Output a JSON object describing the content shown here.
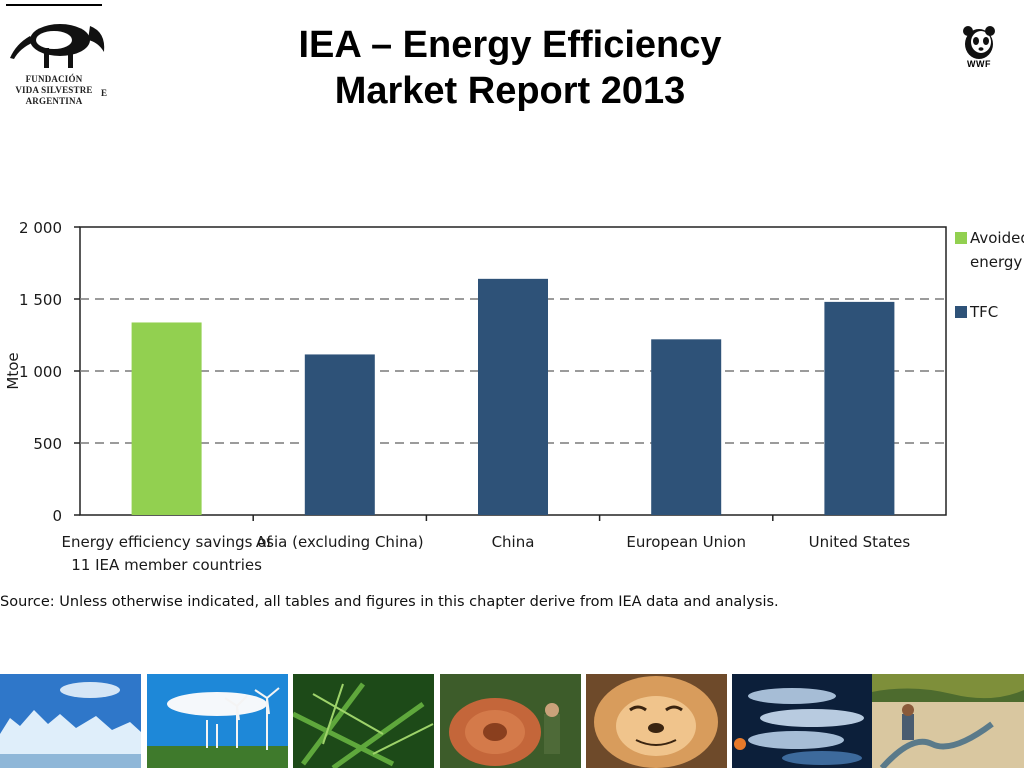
{
  "header": {
    "title_line1": "IEA – Energy Efficiency",
    "title_line2": "Market Report 2013",
    "left_logo": {
      "icon": "anteater-icon",
      "org_line1": "FUNDACIÓN",
      "org_line2": "VIDA SILVESTRE",
      "org_line3": "ARGENTINA",
      "edge_letter": "E"
    },
    "right_logo": {
      "icon": "panda-icon",
      "text": "WWF"
    }
  },
  "chart_data": {
    "type": "bar",
    "categories": [
      "Energy efficiency savings of 11 IEA member countries",
      "Asia (excluding China)",
      "China",
      "European Union",
      "United States"
    ],
    "category_lines": [
      [
        "Energy efficiency savings of",
        "11 IEA member countries"
      ],
      [
        "Asia (excluding China)"
      ],
      [
        "China"
      ],
      [
        "European Union"
      ],
      [
        "United States"
      ]
    ],
    "series": [
      {
        "name": "Avoided energy",
        "legend_lines": [
          "Avoided",
          "energy"
        ],
        "color": "#92d050",
        "values": [
          1337,
          null,
          null,
          null,
          null
        ]
      },
      {
        "name": "TFC",
        "legend_lines": [
          "TFC"
        ],
        "color": "#2e5278",
        "values": [
          null,
          1115,
          1640,
          1220,
          1480
        ]
      }
    ],
    "ylabel": "Mtoe",
    "xlabel": "",
    "title": "",
    "ylim": [
      0,
      2000
    ],
    "yticks": [
      0,
      500,
      1000,
      1500,
      2000
    ],
    "ytick_labels": [
      "0",
      "500",
      "1 000",
      "1 500",
      "2 000"
    ],
    "grid": "dashed horizontal",
    "legend_position": "right"
  },
  "source_note": "Source: Unless otherwise indicated, all tables and figures in this chapter derive from IEA data and analysis.",
  "photos": [
    {
      "icon": "glacier-photo",
      "colors": [
        "#2f77c9",
        "#dfeefa",
        "#8fb7d8"
      ]
    },
    {
      "icon": "wind-turbines-photo",
      "colors": [
        "#1e88d8",
        "#f5f8fb",
        "#3f7a2c"
      ]
    },
    {
      "icon": "fern-photo",
      "colors": [
        "#1d4a18",
        "#5fa83c",
        "#9ed36a"
      ]
    },
    {
      "icon": "tree-log-photo",
      "colors": [
        "#3d5c2a",
        "#c4663a",
        "#8a3f1e"
      ]
    },
    {
      "icon": "seal-photo",
      "colors": [
        "#6e4a2a",
        "#d89c5c",
        "#f0c48c"
      ]
    },
    {
      "icon": "salmon-photo",
      "colors": [
        "#0c1f3a",
        "#a6bdd6",
        "#3d6a9c"
      ]
    },
    {
      "icon": "drought-photo",
      "colors": [
        "#7e8f3a",
        "#d9c7a0",
        "#4d6b2e"
      ]
    }
  ]
}
